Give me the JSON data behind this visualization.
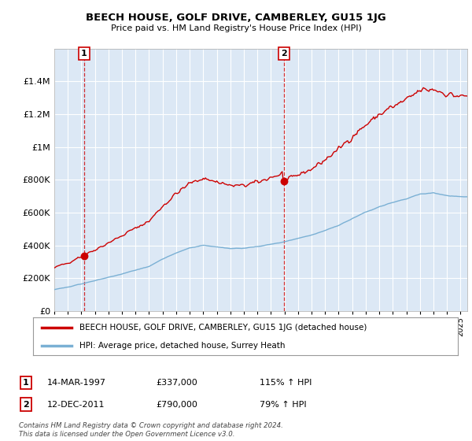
{
  "title": "BEECH HOUSE, GOLF DRIVE, CAMBERLEY, GU15 1JG",
  "subtitle": "Price paid vs. HM Land Registry's House Price Index (HPI)",
  "sale1_date": 1997.21,
  "sale1_price": 337000,
  "sale2_date": 2011.96,
  "sale2_price": 790000,
  "line_color_price": "#cc0000",
  "line_color_hpi": "#7ab0d4",
  "marker_color": "#cc0000",
  "background_plot": "#dce8f5",
  "background_fig": "#ffffff",
  "grid_color": "#ffffff",
  "ylim": [
    0,
    1600000
  ],
  "xlim_start": 1995.0,
  "xlim_end": 2025.5,
  "legend_line1": "BEECH HOUSE, GOLF DRIVE, CAMBERLEY, GU15 1JG (detached house)",
  "legend_line2": "HPI: Average price, detached house, Surrey Heath",
  "footer": "Contains HM Land Registry data © Crown copyright and database right 2024.\nThis data is licensed under the Open Government Licence v3.0.",
  "yticks": [
    0,
    200000,
    400000,
    600000,
    800000,
    1000000,
    1200000,
    1400000
  ],
  "ytick_labels": [
    "£0",
    "£200K",
    "£400K",
    "£600K",
    "£800K",
    "£1M",
    "£1.2M",
    "£1.4M"
  ]
}
